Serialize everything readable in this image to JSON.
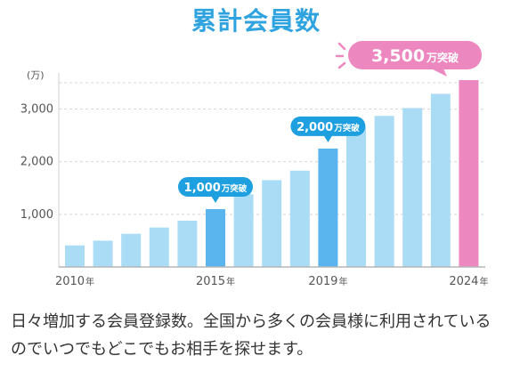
{
  "title": "累計会員数",
  "caption": "日々増加する会員登録数。全国から多くの会員様に利用されているのでいつでもどこでもお相手を探せます。",
  "colors": {
    "bar": "#aadcf6",
    "milestone": "#5ab5ee",
    "latest": "#ec87c0",
    "title": "#2fa3df"
  },
  "chart_data": {
    "type": "bar",
    "title": "累計会員数",
    "unit_label": "(万)",
    "x": [
      2010,
      2011,
      2012,
      2013,
      2014,
      2015,
      2016,
      2017,
      2018,
      2019,
      2020,
      2021,
      2022,
      2023,
      2024
    ],
    "x_tick_labels": [
      {
        "year": 2010,
        "label": "2010",
        "suffix": "年"
      },
      {
        "year": 2015,
        "label": "2015",
        "suffix": "年"
      },
      {
        "year": 2019,
        "label": "2019",
        "suffix": "年"
      },
      {
        "year": 2024,
        "label": "2024",
        "suffix": "年"
      }
    ],
    "values": [
      410,
      500,
      630,
      750,
      880,
      1100,
      1380,
      1650,
      1830,
      2250,
      2650,
      2870,
      3020,
      3290,
      3550
    ],
    "ylim": [
      0,
      3500
    ],
    "yticks": [
      1000,
      2000,
      3000
    ],
    "ytick_labels": [
      "1,000",
      "2,000",
      "3,000"
    ],
    "grid": true,
    "highlight": {
      "milestone": [
        2015,
        2019
      ],
      "latest": 2024
    },
    "annotations": [
      {
        "year": 2015,
        "num": "1,000",
        "suffix": "万突破"
      },
      {
        "year": 2019,
        "num": "2,000",
        "suffix": "万突破"
      },
      {
        "year": 2024,
        "num": "3,500",
        "suffix": "万突破"
      }
    ]
  }
}
